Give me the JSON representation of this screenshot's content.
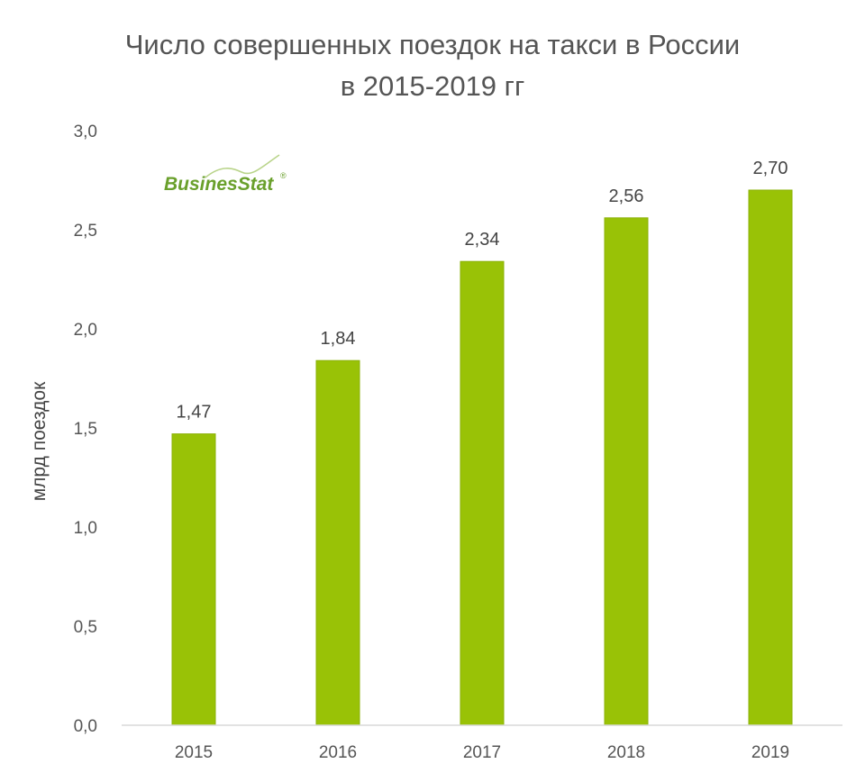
{
  "chart_data": {
    "type": "bar",
    "title_lines": [
      "Число совершенных поездок на такси в России",
      "в 2015-2019 гг"
    ],
    "ylabel": "млрд поездок",
    "xlabel": "",
    "categories": [
      "2015",
      "2016",
      "2017",
      "2018",
      "2019"
    ],
    "values": [
      1.47,
      1.84,
      2.34,
      2.56,
      2.7
    ],
    "data_labels": [
      "1,47",
      "1,84",
      "2,34",
      "2,56",
      "2,70"
    ],
    "ylim": [
      0,
      3.0
    ],
    "y_ticks": [
      0,
      0.5,
      1.0,
      1.5,
      2.0,
      2.5,
      3.0
    ],
    "y_tick_labels": [
      "0,0",
      "0,5",
      "1,0",
      "1,5",
      "2,0",
      "2,5",
      "3,0"
    ],
    "grid": false,
    "legend": "none"
  },
  "logo": {
    "text": "BusinesStat",
    "mark": "®"
  },
  "colors": {
    "bar": "#99c206",
    "bar_edge": "#8ab105",
    "text": "#555555",
    "axis": "#d9d9d9"
  }
}
